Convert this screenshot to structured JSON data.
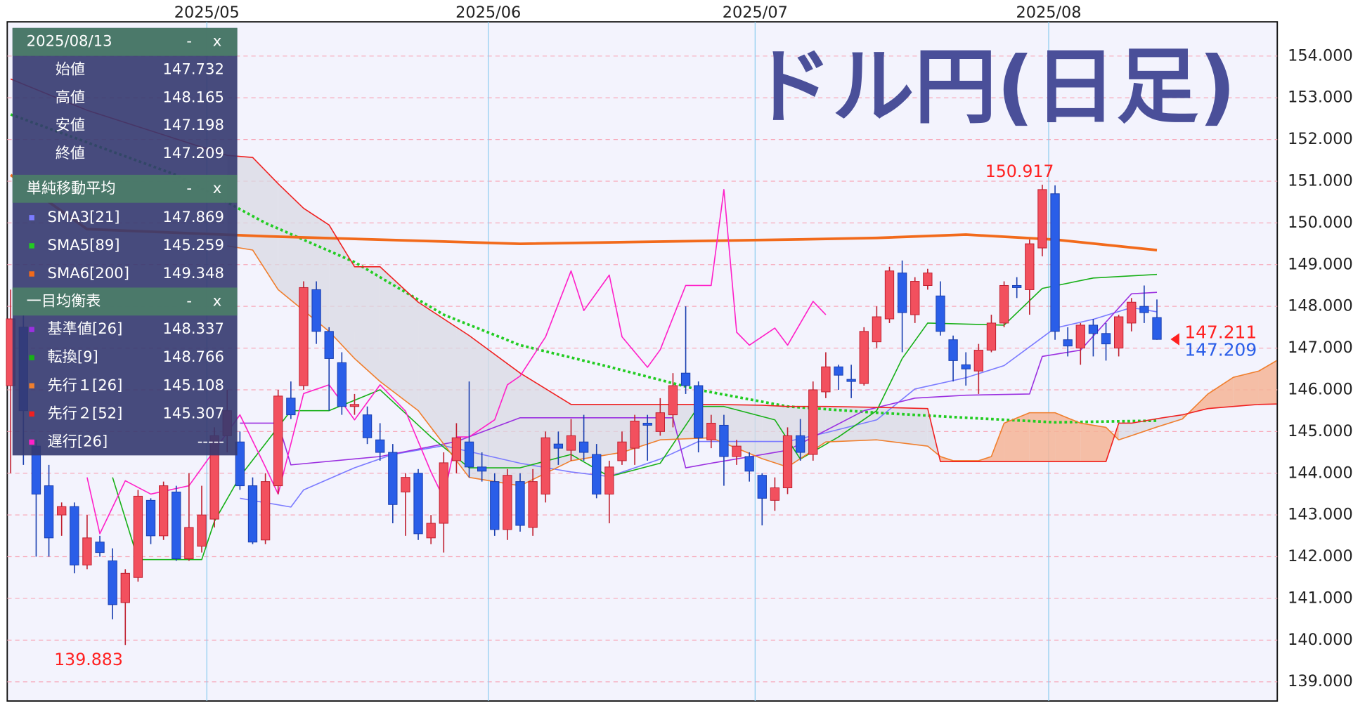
{
  "chart_data": {
    "type": "candlestick",
    "title": "ドル円(日足)",
    "xlim": [
      -0.27,
      99.45
    ],
    "ylim": [
      138.54,
      154.82
    ],
    "xticks": [
      {
        "value": 15.4,
        "label": "2025/05"
      },
      {
        "value": 37.5,
        "label": "2025/06"
      },
      {
        "value": 58.45,
        "label": "2025/07"
      },
      {
        "value": 81.5,
        "label": "2025/08"
      }
    ],
    "yticks": [
      {
        "value": 139,
        "label": "139.000"
      },
      {
        "value": 140,
        "label": "140.000"
      },
      {
        "value": 141,
        "label": "141.000"
      },
      {
        "value": 142,
        "label": "142.000"
      },
      {
        "value": 143,
        "label": "143.000"
      },
      {
        "value": 144,
        "label": "144.000"
      },
      {
        "value": 145,
        "label": "145.000"
      },
      {
        "value": 146,
        "label": "146.000"
      },
      {
        "value": 147,
        "label": "147.000"
      },
      {
        "value": 148,
        "label": "148.000"
      },
      {
        "value": 149,
        "label": "149.000"
      },
      {
        "value": 150,
        "label": "150.000"
      },
      {
        "value": 151,
        "label": "151.000"
      },
      {
        "value": 152,
        "label": "152.000"
      },
      {
        "value": 153,
        "label": "153.000"
      },
      {
        "value": 154,
        "label": "154.000"
      }
    ],
    "grid": true,
    "up_color": "#f2505e",
    "down_color": "#2a5ee8",
    "cloud_colors": {
      "up": "#f5b496",
      "down": "#d9d9e3"
    },
    "candles": [
      [
        146.1,
        148.4,
        144.0,
        147.7
      ],
      [
        147.5,
        147.8,
        144.2,
        145.5
      ],
      [
        144.65,
        144.8,
        142.0,
        143.5
      ],
      [
        143.7,
        144.2,
        142.0,
        142.45
      ],
      [
        143.0,
        143.3,
        142.5,
        143.2
      ],
      [
        143.2,
        143.3,
        141.6,
        141.8
      ],
      [
        141.8,
        143.0,
        141.7,
        142.45
      ],
      [
        142.35,
        142.5,
        142.0,
        142.1
      ],
      [
        141.9,
        142.2,
        140.5,
        140.85
      ],
      [
        140.9,
        141.7,
        139.883,
        141.6
      ],
      [
        141.5,
        143.6,
        141.4,
        143.45
      ],
      [
        143.35,
        143.4,
        142.3,
        142.5
      ],
      [
        142.5,
        143.8,
        142.4,
        143.7
      ],
      [
        143.55,
        143.7,
        141.9,
        141.95
      ],
      [
        141.95,
        144.0,
        141.9,
        142.7
      ],
      [
        142.25,
        143.7,
        142.1,
        143.0
      ],
      [
        142.9,
        145.1,
        142.7,
        144.9
      ],
      [
        144.9,
        146.0,
        144.5,
        145.5
      ],
      [
        144.75,
        145.0,
        143.6,
        143.7
      ],
      [
        143.7,
        143.9,
        142.3,
        142.35
      ],
      [
        142.4,
        144.0,
        142.3,
        143.8
      ],
      [
        143.7,
        146.0,
        143.5,
        145.85
      ],
      [
        145.8,
        146.2,
        145.3,
        145.4
      ],
      [
        146.1,
        148.6,
        146.0,
        148.45
      ],
      [
        148.4,
        148.6,
        147.1,
        147.4
      ],
      [
        147.4,
        147.5,
        145.5,
        146.75
      ],
      [
        146.65,
        146.9,
        145.4,
        145.6
      ],
      [
        145.6,
        145.9,
        145.4,
        145.65
      ],
      [
        145.4,
        145.6,
        144.7,
        144.85
      ],
      [
        144.8,
        145.2,
        144.3,
        144.5
      ],
      [
        144.5,
        144.7,
        142.8,
        143.25
      ],
      [
        143.55,
        144.0,
        142.5,
        143.9
      ],
      [
        144.0,
        144.1,
        142.4,
        142.55
      ],
      [
        142.45,
        143.0,
        142.3,
        142.8
      ],
      [
        142.8,
        144.5,
        142.1,
        144.25
      ],
      [
        144.3,
        145.2,
        144.0,
        144.85
      ],
      [
        144.75,
        146.2,
        143.9,
        144.15
      ],
      [
        144.15,
        144.5,
        143.8,
        144.05
      ],
      [
        143.8,
        144.0,
        142.5,
        142.65
      ],
      [
        142.65,
        144.1,
        142.4,
        143.95
      ],
      [
        143.8,
        144.0,
        142.6,
        142.75
      ],
      [
        142.7,
        144.1,
        142.5,
        143.8
      ],
      [
        143.5,
        145.0,
        143.3,
        144.85
      ],
      [
        144.7,
        145.0,
        144.2,
        144.6
      ],
      [
        144.55,
        145.3,
        144.3,
        144.9
      ],
      [
        144.75,
        145.4,
        144.3,
        144.5
      ],
      [
        144.45,
        144.7,
        143.4,
        143.5
      ],
      [
        143.5,
        144.3,
        142.8,
        144.15
      ],
      [
        144.3,
        145.0,
        144.2,
        144.75
      ],
      [
        144.6,
        145.4,
        144.2,
        145.25
      ],
      [
        145.2,
        145.4,
        144.3,
        145.15
      ],
      [
        145.0,
        145.8,
        144.9,
        145.45
      ],
      [
        145.4,
        146.4,
        145.1,
        146.1
      ],
      [
        146.4,
        148.0,
        145.9,
        146.1
      ],
      [
        146.1,
        146.2,
        144.5,
        144.85
      ],
      [
        144.8,
        145.4,
        144.6,
        145.2
      ],
      [
        145.15,
        145.4,
        143.7,
        144.4
      ],
      [
        144.4,
        144.8,
        144.2,
        144.65
      ],
      [
        144.4,
        144.5,
        143.8,
        144.05
      ],
      [
        143.95,
        144.0,
        142.75,
        143.4
      ],
      [
        143.35,
        143.9,
        143.1,
        143.65
      ],
      [
        143.65,
        145.1,
        143.5,
        144.9
      ],
      [
        144.9,
        145.3,
        144.3,
        144.5
      ],
      [
        144.45,
        146.2,
        144.3,
        146.0
      ],
      [
        145.95,
        146.9,
        145.8,
        146.55
      ],
      [
        146.55,
        146.6,
        146.0,
        146.35
      ],
      [
        146.25,
        146.6,
        145.8,
        146.2
      ],
      [
        146.15,
        147.5,
        146.1,
        147.4
      ],
      [
        147.15,
        148.0,
        147.0,
        147.75
      ],
      [
        147.7,
        148.95,
        147.6,
        148.85
      ],
      [
        148.8,
        149.1,
        146.9,
        147.85
      ],
      [
        147.8,
        148.7,
        147.6,
        148.6
      ],
      [
        148.5,
        148.9,
        148.4,
        148.8
      ],
      [
        148.25,
        148.6,
        147.3,
        147.4
      ],
      [
        147.2,
        147.3,
        146.2,
        146.7
      ],
      [
        146.6,
        146.9,
        146.1,
        146.5
      ],
      [
        146.45,
        147.1,
        145.9,
        146.95
      ],
      [
        146.95,
        147.8,
        146.9,
        147.6
      ],
      [
        147.6,
        148.6,
        147.5,
        148.5
      ],
      [
        148.5,
        148.7,
        148.2,
        148.45
      ],
      [
        148.4,
        149.6,
        147.8,
        149.5
      ],
      [
        149.4,
        150.917,
        149.2,
        150.8
      ],
      [
        150.7,
        150.9,
        147.2,
        147.4
      ],
      [
        147.2,
        147.5,
        146.8,
        147.05
      ],
      [
        147.0,
        147.6,
        146.6,
        147.55
      ],
      [
        147.55,
        147.7,
        146.8,
        147.35
      ],
      [
        147.35,
        147.6,
        146.7,
        147.1
      ],
      [
        147.0,
        147.8,
        146.8,
        147.75
      ],
      [
        147.6,
        148.2,
        147.4,
        148.1
      ],
      [
        148.0,
        148.5,
        147.6,
        147.85
      ],
      [
        147.732,
        148.165,
        147.198,
        147.209
      ]
    ],
    "high_label": 150.917,
    "low_label": 139.883,
    "price_labels": [
      {
        "value": 147.211,
        "color": "#ff2020"
      },
      {
        "value": 147.209,
        "color": "#2a5ee8"
      }
    ],
    "sma": [
      {
        "name": "SMA3[21]",
        "color": "#7b7bff",
        "width": 1.3,
        "dashed": false,
        "last": 147.869,
        "x": [
          18,
          22,
          23,
          27,
          30,
          34,
          37,
          40,
          44,
          47,
          51,
          54,
          58,
          61,
          64,
          68,
          71,
          75,
          78,
          82,
          85,
          88,
          90
        ],
        "values": [
          143.4,
          143.19,
          143.6,
          144.13,
          144.45,
          144.66,
          144.45,
          144.24,
          144.03,
          143.92,
          144.34,
          144.76,
          144.76,
          144.76,
          144.97,
          145.28,
          146.02,
          146.29,
          146.58,
          147.48,
          147.69,
          147.97,
          147.869
        ]
      },
      {
        "name": "SMA5[89]",
        "color": "#22cc22",
        "width": 3,
        "dashed": true,
        "last": 145.259,
        "x": [
          0,
          13,
          20,
          27,
          34,
          40,
          47,
          54,
          61,
          68,
          75,
          82,
          90
        ],
        "values": [
          152.6,
          151.15,
          150.0,
          149.06,
          147.8,
          147.07,
          146.55,
          146.0,
          145.6,
          145.45,
          145.33,
          145.22,
          145.259
        ]
      },
      {
        "name": "SMA6[200]",
        "color": "#f26a1b",
        "width": 3,
        "dashed": false,
        "last": 149.348,
        "x": [
          0,
          6,
          20,
          40,
          61,
          68,
          75,
          82,
          90
        ],
        "values": [
          151.15,
          149.85,
          149.68,
          149.5,
          149.6,
          149.64,
          149.72,
          149.6,
          149.348
        ]
      }
    ],
    "ichimoku": [
      {
        "name": "基準値[26]",
        "color": "#9b30e0",
        "width": 1.3,
        "dashed": false,
        "last": 148.337,
        "x": [
          18,
          21,
          22,
          29,
          35,
          40,
          47,
          52,
          53,
          55,
          61,
          67,
          71,
          75,
          80,
          81,
          84,
          88,
          90
        ],
        "values": [
          145.2,
          145.2,
          144.2,
          144.4,
          144.76,
          145.33,
          145.33,
          145.33,
          144.13,
          144.24,
          144.55,
          145.5,
          145.8,
          145.87,
          145.9,
          146.8,
          146.95,
          148.3,
          148.337
        ]
      },
      {
        "name": "転換[9]",
        "color": "#18b018",
        "width": 1.3,
        "dashed": false,
        "last": 148.766,
        "x": [
          8,
          10,
          15,
          16,
          18,
          22,
          25,
          29,
          33,
          36,
          40,
          44,
          47,
          51,
          54,
          56,
          60,
          62,
          65,
          68,
          70,
          72,
          78,
          81,
          85,
          90
        ],
        "values": [
          143.9,
          141.93,
          141.93,
          142.85,
          143.92,
          145.5,
          145.5,
          146.0,
          144.87,
          144.13,
          144.13,
          144.45,
          143.92,
          144.24,
          145.6,
          145.6,
          145.28,
          144.34,
          144.87,
          145.5,
          146.75,
          147.6,
          147.55,
          148.43,
          148.68,
          148.766
        ]
      },
      {
        "name": "先行１[26]",
        "color": "#f07f2e",
        "width": 1.3,
        "dashed": false,
        "last": 145.108,
        "x": [
          0,
          6,
          17,
          19,
          21,
          23,
          25,
          27,
          29,
          32,
          35,
          36,
          40,
          44,
          48,
          51,
          55,
          59,
          61,
          64,
          68,
          72,
          73,
          74,
          76,
          77,
          78,
          80,
          82,
          84,
          86,
          87,
          88,
          90,
          92,
          94,
          96,
          98,
          99.4
        ],
        "values": [
          null,
          null,
          149.45,
          149.35,
          148.4,
          147.9,
          147.4,
          146.75,
          146.2,
          145.5,
          144.3,
          143.9,
          143.7,
          144.3,
          144.5,
          144.8,
          144.85,
          144.35,
          144.15,
          144.75,
          144.8,
          144.65,
          144.4,
          144.3,
          144.3,
          144.4,
          145.2,
          145.45,
          145.45,
          145.2,
          145.1,
          144.8,
          144.9,
          145.108,
          145.3,
          145.9,
          146.3,
          146.45,
          146.7
        ]
      },
      {
        "name": "先行２[52]",
        "color": "#f02020",
        "width": 1.3,
        "dashed": false,
        "last": 145.307,
        "x": [
          0,
          6,
          17,
          19,
          21,
          23,
          25,
          27,
          29,
          32,
          35,
          36,
          40,
          44,
          48,
          51,
          55,
          59,
          61,
          64,
          68,
          72,
          73,
          74,
          76,
          77,
          78,
          80,
          82,
          84,
          86,
          87,
          88,
          90,
          92,
          94,
          96,
          98,
          99.4
        ],
        "values": [
          153.45,
          152.7,
          151.62,
          151.57,
          150.94,
          150.35,
          149.95,
          148.95,
          148.95,
          148.1,
          147.5,
          147.3,
          146.4,
          145.65,
          145.65,
          145.65,
          145.65,
          145.63,
          145.6,
          145.6,
          145.58,
          145.55,
          144.28,
          144.28,
          144.28,
          144.28,
          144.28,
          144.28,
          144.28,
          144.28,
          144.28,
          145.2,
          145.2,
          145.307,
          145.4,
          145.55,
          145.6,
          145.65,
          145.66
        ]
      },
      {
        "name": "遅行[26]",
        "color": "#ff20c8",
        "width": 1.3,
        "dashed": false,
        "last": "-----",
        "x": [
          6,
          7,
          9,
          11,
          14,
          18,
          20,
          21,
          23,
          25,
          27,
          29,
          31,
          33,
          34,
          35,
          36,
          38,
          39,
          40,
          42,
          44,
          45,
          47,
          48,
          50,
          51,
          53,
          55,
          56,
          57,
          58,
          60,
          61,
          63,
          64
        ],
        "values": [
          143.9,
          142.55,
          143.82,
          143.5,
          143.7,
          145.4,
          144.15,
          143.5,
          145.91,
          146.12,
          145.28,
          146.12,
          145.49,
          144.03,
          143.4,
          144.87,
          144.87,
          145.28,
          146.12,
          146.33,
          147.27,
          148.85,
          147.9,
          148.75,
          147.27,
          146.54,
          146.96,
          148.5,
          148.5,
          150.8,
          147.38,
          147.07,
          147.48,
          147.07,
          148.12,
          147.8
        ]
      }
    ],
    "panel": {
      "date": "2025/08/13",
      "buttons": [
        "-",
        "x"
      ],
      "ohlc_labels": [
        "始値",
        "高値",
        "安値",
        "終値"
      ],
      "sma_title": "単純移動平均",
      "ichimoku_title": "一目均衡表"
    }
  }
}
